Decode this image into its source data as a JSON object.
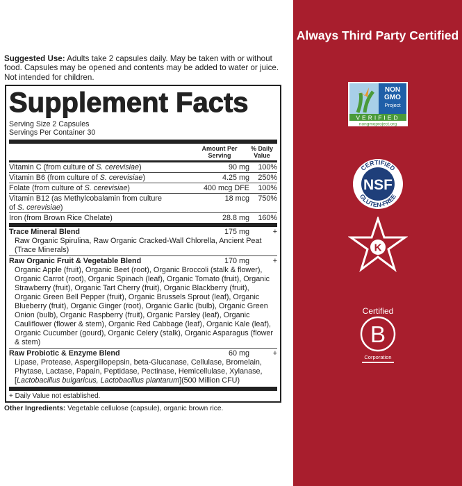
{
  "suggested_use": {
    "label": "Suggested Use:",
    "text": " Adults take 2 capsules daily. May be taken with or without food. Capsules may be opened and contents may be added to water or juice. Not intended for children."
  },
  "facts": {
    "title": "Supplement Facts",
    "serving_size": "Serving Size 2 Capsules",
    "servings_per_container": "Servings Per Container 30",
    "col_amount": "Amount Per Serving",
    "col_dv": "% Daily Value",
    "nutrients": [
      {
        "name": "Vitamin C (from culture of ",
        "italic": "S. cerevisiae",
        "close": ")",
        "amount": "90 mg",
        "dv": "100%"
      },
      {
        "name": "Vitamin B6 (from culture of ",
        "italic": "S. cerevisiae",
        "close": ")",
        "amount": "4.25 mg",
        "dv": "250%"
      },
      {
        "name": "Folate (from culture of ",
        "italic": "S. cerevisiae",
        "close": ")",
        "amount": "400 mcg DFE",
        "dv": "100%"
      },
      {
        "name": "Vitamin B12 (as Methylcobalamin from culture of ",
        "italic": "S. cerevisiae",
        "close": ")",
        "amount": "18 mcg",
        "dv": "750%"
      },
      {
        "name": "Iron (from Brown Rice Chelate)",
        "italic": "",
        "close": "",
        "amount": "28.8 mg",
        "dv": "160%"
      }
    ],
    "blends": [
      {
        "name": "Trace Mineral Blend",
        "amount": "175 mg",
        "dv": "+",
        "ingredients": "Raw Organic Spirulina, Raw Organic Cracked-Wall Chlorella, Ancient Peat (Trace Minerals)",
        "italic": "",
        "tail": ""
      },
      {
        "name": "Raw Organic Fruit & Vegetable Blend",
        "amount": "170 mg",
        "dv": "+",
        "ingredients": "Organic Apple (fruit), Organic Beet (root), Organic Broccoli (stalk & flower), Organic Carrot (root), Organic Spinach (leaf), Organic Tomato (fruit), Organic Strawberry (fruit), Organic Tart Cherry (fruit), Organic Blackberry (fruit), Organic Green Bell Pepper (fruit), Organic Brussels Sprout (leaf), Organic Blueberry (fruit), Organic Ginger (root), Organic Garlic (bulb), Organic Green Onion (bulb), Organic Raspberry (fruit), Organic Parsley (leaf), Organic Cauliflower (flower & stem), Organic Red Cabbage (leaf), Organic Kale (leaf), Organic Cucumber (gourd), Organic Celery (stalk), Organic Asparagus (flower & stem)",
        "italic": "",
        "tail": ""
      },
      {
        "name": "Raw Probiotic & Enzyme Blend",
        "amount": "60 mg",
        "dv": "+",
        "ingredients": "Lipase, Protease, Aspergillopepsin, beta-Glucanase, Cellulase, Bromelain, Phytase, Lactase, Papain, Peptidase, Pectinase, Hemicellulase, Xylanase, [",
        "italic": "Lactobacillus bulgaricus, Lactobacillus plantarum",
        "tail": "](500 Million CFU)"
      }
    ],
    "footnote": "+ Daily Value not established."
  },
  "other_ingredients": {
    "label": "Other Ingredients:",
    "text": " Vegetable cellulose (capsule), organic brown rice."
  },
  "certifications": {
    "title": "Always Third Party Certified",
    "panel_color": "#a81e2d",
    "logos": [
      {
        "icon": "non-gmo-project-verified-logo",
        "text": [
          "NON",
          "GMO",
          "Project",
          "VERIFIED",
          "nongmoproject.org"
        ]
      },
      {
        "icon": "nsf-gluten-free-logo",
        "text": [
          "CERTIFIED",
          "NSF",
          "GLUTEN-FREE"
        ]
      },
      {
        "icon": "kosher-star-k-logo",
        "text": [
          "K"
        ]
      },
      {
        "icon": "certified-b-corporation-logo",
        "text": [
          "Certified",
          "B",
          "Corporation"
        ]
      }
    ]
  }
}
